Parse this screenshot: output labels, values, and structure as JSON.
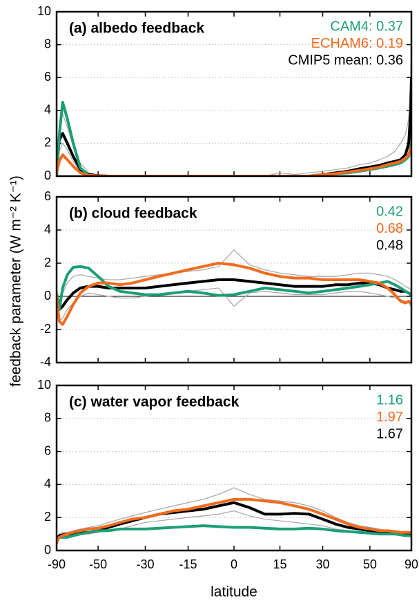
{
  "chart_data": [
    {
      "type": "line",
      "title": "(a) albedo feedback",
      "xscale": "sine",
      "grid": true,
      "x": [
        -90,
        -85,
        -80,
        -75,
        -70,
        -65,
        -60,
        -55,
        -50,
        -45,
        -40,
        -35,
        -30,
        -25,
        -20,
        -15,
        -10,
        -5,
        0,
        5,
        10,
        15,
        20,
        25,
        30,
        35,
        40,
        45,
        50,
        55,
        60,
        65,
        70,
        75,
        80,
        85,
        90
      ],
      "xlim": [
        -90,
        90
      ],
      "xticks": [
        -90,
        -50,
        -30,
        -15,
        0,
        15,
        30,
        50,
        90
      ],
      "ylim": [
        0,
        10
      ],
      "yticks": [
        0,
        2,
        4,
        6,
        8,
        10
      ],
      "annotations": [
        {
          "text": "CAM4: 0.37",
          "color": "#1b9e77"
        },
        {
          "text": "ECHAM6: 0.19",
          "color": "#f26b1d"
        },
        {
          "text": "CMIP5 mean: 0.36",
          "color": "#000000"
        }
      ],
      "series": [
        {
          "color": "#aaaaaa",
          "values": [
            0,
            1.5,
            3.2,
            3.8,
            3.0,
            1.8,
            0.8,
            0.2,
            0.05,
            0,
            0,
            0,
            0,
            0,
            0,
            0,
            0,
            0,
            0,
            0,
            0,
            0.2,
            0.1,
            0.2,
            0.3,
            0.4,
            0.5,
            0.7,
            0.8,
            1.0,
            1.2,
            1.5,
            2.0,
            2.5,
            3.5,
            6.0,
            9.0
          ]
        },
        {
          "color": "#aaaaaa",
          "values": [
            0,
            0.6,
            1.5,
            2.0,
            1.6,
            0.9,
            0.3,
            0.05,
            0,
            0,
            0,
            0,
            0,
            0,
            0,
            0,
            0,
            0,
            0,
            0,
            0,
            0,
            0,
            0,
            0.05,
            0.1,
            0.2,
            0.3,
            0.4,
            0.5,
            0.6,
            0.7,
            0.8,
            1.0,
            1.5,
            2.5,
            4.0
          ]
        },
        {
          "name": "CMIP5 mean",
          "color": "#000000",
          "values": [
            0.1,
            1.0,
            2.2,
            2.6,
            2.0,
            1.2,
            0.4,
            0.1,
            0.03,
            0,
            0,
            0,
            0,
            0,
            0,
            0,
            0,
            0,
            0,
            0,
            0,
            0,
            0,
            0,
            0.1,
            0.2,
            0.3,
            0.45,
            0.55,
            0.65,
            0.8,
            0.9,
            1.0,
            1.3,
            2.0,
            4.0,
            6.0
          ]
        },
        {
          "name": "CAM4",
          "color": "#1b9e77",
          "values": [
            0,
            0.5,
            2.5,
            4.5,
            3.5,
            2.0,
            0.5,
            0.05,
            0,
            0,
            0,
            0,
            0,
            0,
            0,
            0,
            0,
            0,
            0,
            0,
            0,
            0,
            0,
            0,
            0.1,
            0.15,
            0.2,
            0.3,
            0.4,
            0.5,
            0.6,
            0.7,
            0.8,
            1.0,
            1.2,
            1.8,
            2.0
          ]
        },
        {
          "name": "ECHAM6",
          "color": "#f26b1d",
          "values": [
            0.1,
            0.4,
            0.9,
            1.3,
            1.0,
            0.6,
            0.2,
            0.05,
            0.02,
            0,
            0,
            0,
            0,
            0,
            0,
            0,
            0,
            0,
            0,
            0,
            0,
            0,
            0,
            0,
            0.1,
            0.15,
            0.25,
            0.35,
            0.45,
            0.55,
            0.7,
            0.8,
            0.9,
            1.1,
            1.3,
            1.7,
            1.8
          ]
        }
      ]
    },
    {
      "type": "line",
      "title": "(b) cloud feedback",
      "xscale": "sine",
      "grid": true,
      "zero_line": true,
      "ylabel": "feedback parameter (W m⁻² K⁻¹)",
      "x": [
        -90,
        -85,
        -80,
        -75,
        -70,
        -65,
        -60,
        -55,
        -50,
        -45,
        -40,
        -35,
        -30,
        -25,
        -20,
        -15,
        -10,
        -5,
        0,
        5,
        10,
        15,
        20,
        25,
        30,
        35,
        40,
        45,
        50,
        55,
        60,
        65,
        70,
        75,
        80,
        85,
        90
      ],
      "xlim": [
        -90,
        90
      ],
      "xticks": [
        -90,
        -50,
        -30,
        -15,
        0,
        15,
        30,
        50,
        90
      ],
      "ylim": [
        -4,
        6
      ],
      "yticks": [
        -4,
        -2,
        0,
        2,
        4,
        6
      ],
      "annotations": [
        {
          "text": "0.42",
          "color": "#1b9e77"
        },
        {
          "text": "0.68",
          "color": "#f26b1d"
        },
        {
          "text": "0.48",
          "color": "#000000"
        }
      ],
      "series": [
        {
          "color": "#aaaaaa",
          "values": [
            0.5,
            0.2,
            -0.3,
            0.2,
            0.8,
            1.2,
            1.3,
            1.2,
            1.1,
            1.0,
            1.0,
            1.1,
            1.2,
            1.3,
            1.4,
            1.5,
            1.6,
            1.8,
            2.8,
            1.9,
            1.6,
            1.4,
            1.3,
            1.2,
            1.2,
            1.2,
            1.3,
            1.4,
            1.4,
            1.3,
            1.2,
            1.0,
            0.8,
            0.6,
            0.5,
            0.4,
            0.3
          ]
        },
        {
          "color": "#aaaaaa",
          "values": [
            0,
            -0.8,
            -1.5,
            -1.3,
            -0.8,
            -0.4,
            0,
            0.2,
            0.1,
            0,
            -0.1,
            -0.1,
            0,
            0.1,
            0.2,
            0.3,
            0.4,
            0.5,
            -0.6,
            0.2,
            0.3,
            0.2,
            0.1,
            0.1,
            0.1,
            0.2,
            0.3,
            0.3,
            0.2,
            0.1,
            0,
            -0.1,
            -0.2,
            -0.3,
            -0.4,
            -0.6,
            -0.5
          ]
        },
        {
          "name": "CMIP5 mean",
          "color": "#000000",
          "values": [
            0.1,
            -0.5,
            -0.8,
            -0.6,
            -0.2,
            0.2,
            0.5,
            0.6,
            0.6,
            0.5,
            0.5,
            0.5,
            0.5,
            0.6,
            0.7,
            0.8,
            0.9,
            1.0,
            1.0,
            0.9,
            0.8,
            0.7,
            0.6,
            0.6,
            0.6,
            0.7,
            0.7,
            0.8,
            0.8,
            0.7,
            0.5,
            0.4,
            0.3,
            0.3,
            0.2,
            0.1,
            0.1
          ]
        },
        {
          "name": "CAM4",
          "color": "#1b9e77",
          "values": [
            0.1,
            0,
            -0.8,
            0.5,
            1.3,
            1.75,
            1.8,
            1.7,
            1.2,
            0.6,
            0.3,
            0.2,
            0.1,
            0.1,
            0.2,
            0.3,
            0.2,
            0.05,
            0.1,
            0.3,
            0.5,
            0.4,
            0.3,
            0.2,
            0.3,
            0.4,
            0.5,
            0.6,
            0.7,
            0.8,
            0.9,
            0.7,
            0.5,
            0.3,
            0.2,
            0.1,
            0.1
          ]
        },
        {
          "name": "ECHAM6",
          "color": "#f26b1d",
          "values": [
            0.2,
            -0.5,
            -1.5,
            -1.7,
            -1.2,
            -0.5,
            0.2,
            0.6,
            0.8,
            0.8,
            0.7,
            0.8,
            1.0,
            1.2,
            1.4,
            1.6,
            1.8,
            2.0,
            1.9,
            1.7,
            1.4,
            1.2,
            1.1,
            1.1,
            1.0,
            1.0,
            1.0,
            1.0,
            0.9,
            0.8,
            0.5,
            0.1,
            -0.3,
            -0.4,
            -0.3,
            -0.4,
            -0.4
          ]
        }
      ]
    },
    {
      "type": "line",
      "title": "(c) water vapor feedback",
      "xscale": "sine",
      "grid": true,
      "show_xticklabels": true,
      "xlabel": "latitude",
      "x": [
        -90,
        -85,
        -80,
        -75,
        -70,
        -65,
        -60,
        -55,
        -50,
        -45,
        -40,
        -35,
        -30,
        -25,
        -20,
        -15,
        -10,
        -5,
        0,
        5,
        10,
        15,
        20,
        25,
        30,
        35,
        40,
        45,
        50,
        55,
        60,
        65,
        70,
        75,
        80,
        85,
        90
      ],
      "xlim": [
        -90,
        90
      ],
      "xticks": [
        -90,
        -50,
        -30,
        -15,
        0,
        15,
        30,
        50,
        90
      ],
      "ylim": [
        0,
        10
      ],
      "yticks": [
        0,
        2,
        4,
        6,
        8,
        10
      ],
      "annotations": [
        {
          "text": "1.16",
          "color": "#1b9e77"
        },
        {
          "text": "1.97",
          "color": "#f26b1d"
        },
        {
          "text": "1.67",
          "color": "#000000"
        }
      ],
      "series": [
        {
          "color": "#aaaaaa",
          "values": [
            0.5,
            0.8,
            1.0,
            1.1,
            1.1,
            1.2,
            1.3,
            1.4,
            1.5,
            1.7,
            1.9,
            2.1,
            2.3,
            2.5,
            2.7,
            2.9,
            3.1,
            3.4,
            3.8,
            3.4,
            3.1,
            3.0,
            2.9,
            2.7,
            2.4,
            2.0,
            1.7,
            1.5,
            1.4,
            1.3,
            1.2,
            1.2,
            1.1,
            1.1,
            1.1,
            1.0,
            1.0
          ]
        },
        {
          "color": "#aaaaaa",
          "values": [
            0.5,
            0.7,
            0.8,
            0.9,
            0.9,
            1.0,
            1.0,
            1.0,
            1.1,
            1.2,
            1.3,
            1.5,
            1.7,
            1.8,
            1.9,
            2.0,
            2.1,
            2.2,
            2.4,
            2.1,
            1.9,
            1.8,
            1.7,
            1.6,
            1.5,
            1.3,
            1.2,
            1.1,
            1.0,
            1.0,
            1.0,
            0.95,
            0.9,
            0.9,
            0.85,
            0.85,
            0.8
          ]
        },
        {
          "name": "CMIP5 mean",
          "color": "#000000",
          "values": [
            0.5,
            0.7,
            0.9,
            0.95,
            1.0,
            1.0,
            1.05,
            1.1,
            1.2,
            1.4,
            1.6,
            1.8,
            2.0,
            2.2,
            2.3,
            2.4,
            2.5,
            2.7,
            2.9,
            2.6,
            2.2,
            2.2,
            2.25,
            2.2,
            1.9,
            1.6,
            1.4,
            1.3,
            1.2,
            1.1,
            1.1,
            1.05,
            1.0,
            1.0,
            1.0,
            0.95,
            0.9
          ]
        },
        {
          "name": "CAM4",
          "color": "#1b9e77",
          "values": [
            0.5,
            0.7,
            0.8,
            0.8,
            0.8,
            0.9,
            1.0,
            1.1,
            1.2,
            1.2,
            1.3,
            1.3,
            1.3,
            1.35,
            1.4,
            1.45,
            1.5,
            1.45,
            1.4,
            1.4,
            1.35,
            1.3,
            1.3,
            1.35,
            1.3,
            1.2,
            1.15,
            1.1,
            1.05,
            1.0,
            1.0,
            1.0,
            0.95,
            0.9,
            0.9,
            0.9,
            0.9
          ]
        },
        {
          "name": "ECHAM6",
          "color": "#f26b1d",
          "values": [
            0.4,
            0.6,
            0.8,
            0.9,
            1.0,
            1.1,
            1.2,
            1.3,
            1.35,
            1.5,
            1.7,
            1.9,
            2.0,
            2.2,
            2.4,
            2.5,
            2.7,
            2.9,
            3.1,
            3.1,
            3.0,
            2.9,
            2.7,
            2.5,
            2.2,
            1.9,
            1.6,
            1.4,
            1.3,
            1.2,
            1.2,
            1.15,
            1.1,
            1.1,
            1.1,
            1.1,
            1.1
          ]
        }
      ]
    }
  ]
}
